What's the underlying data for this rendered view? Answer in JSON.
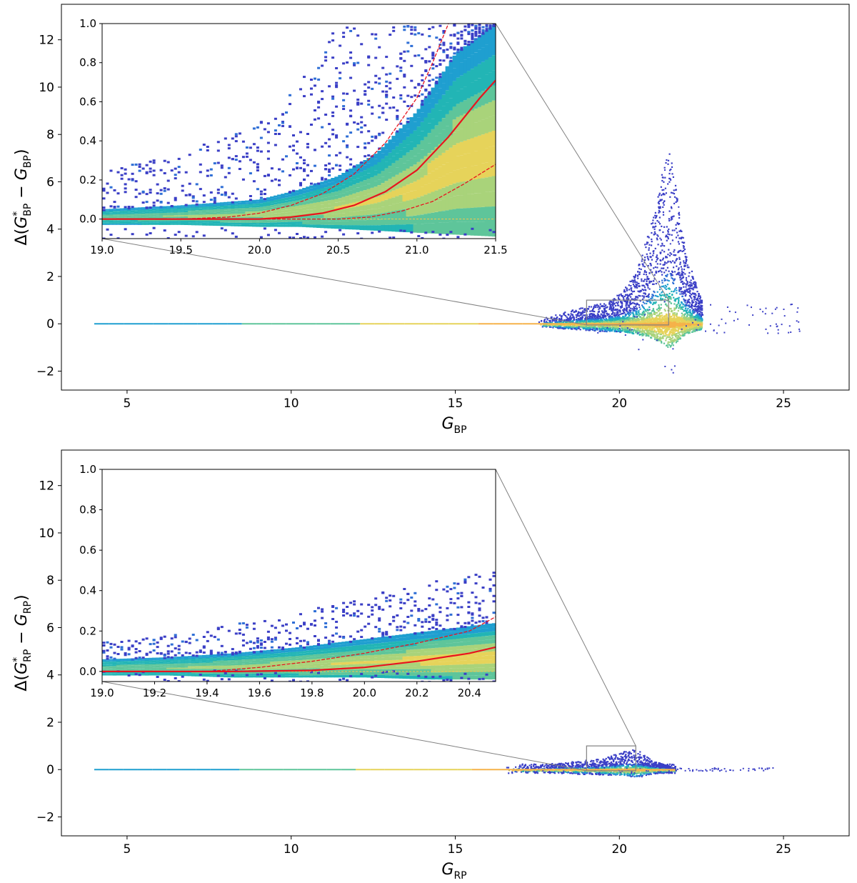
{
  "figure": {
    "panels": [
      "top",
      "bottom"
    ]
  },
  "colors": {
    "colormap": [
      "#3b3fc6",
      "#2f6fd6",
      "#1f9fd0",
      "#22b5b5",
      "#5ec59a",
      "#a9d37a",
      "#e6d35a",
      "#f5b24a"
    ],
    "fit_line": "#e8141e",
    "zoom_box": "#808080",
    "zero_line": "#f2c54d"
  },
  "chart_data": [
    {
      "id": "top",
      "type": "scatter",
      "render": "2d-density (hexbin)",
      "title": "",
      "xlabel": {
        "main": "G",
        "sub": "BP"
      },
      "ylabel": {
        "prefix": "Δ(",
        "g1": "G",
        "g1_sup": "*",
        "g1_sub": "BP",
        "minus": " − ",
        "g2": "G",
        "g2_sub": "BP",
        "suffix": ")"
      },
      "xlim": [
        3,
        27
      ],
      "ylim": [
        -2.8,
        13.5
      ],
      "xticks": [
        5,
        10,
        15,
        20,
        25
      ],
      "xtick_labels": [
        "5",
        "10",
        "15",
        "20",
        "25"
      ],
      "yticks": [
        -2,
        0,
        2,
        4,
        6,
        8,
        10,
        12
      ],
      "ytick_labels": [
        "−2",
        "0",
        "2",
        "4",
        "6",
        "8",
        "10",
        "12"
      ],
      "density_envelope": {
        "description": "median and spread of Δ vs magnitude (main panel)",
        "x": [
          17.5,
          18.5,
          19.5,
          20.0,
          20.5,
          21.0,
          21.3,
          21.5,
          21.7,
          22.0,
          22.5
        ],
        "upper": [
          0.2,
          0.6,
          0.9,
          1.3,
          2.2,
          4.5,
          6.5,
          7.5,
          6.0,
          3.0,
          1.0
        ],
        "lower": [
          -0.1,
          -0.2,
          -0.3,
          -0.3,
          -0.4,
          -0.6,
          -0.8,
          -1.0,
          -0.8,
          -0.4,
          -0.2
        ]
      },
      "zero_line_range": [
        4,
        22
      ],
      "zoom_box": {
        "x": [
          19,
          21.5
        ],
        "y": [
          -0.05,
          1.0
        ]
      },
      "inset": {
        "xlim": [
          19.0,
          21.5
        ],
        "ylim": [
          -0.1,
          1.0
        ],
        "xticks": [
          19.0,
          19.5,
          20.0,
          20.5,
          21.0,
          21.5
        ],
        "xtick_labels": [
          "19.0",
          "19.5",
          "20.0",
          "20.5",
          "21.0",
          "21.5"
        ],
        "yticks": [
          0.0,
          0.2,
          0.4,
          0.6,
          0.8,
          1.0
        ],
        "ytick_labels": [
          "0.0",
          "0.2",
          "0.4",
          "0.6",
          "0.8",
          "1.0"
        ],
        "series": [
          {
            "name": "median",
            "style": "solid",
            "x": [
              19.0,
              19.5,
              20.0,
              20.2,
              20.4,
              20.6,
              20.8,
              21.0,
              21.2,
              21.4,
              21.5
            ],
            "y": [
              0.0,
              0.0,
              0.0,
              0.01,
              0.03,
              0.07,
              0.14,
              0.25,
              0.42,
              0.62,
              0.71
            ]
          },
          {
            "name": "upper bound",
            "style": "dashed",
            "x": [
              19.0,
              19.5,
              19.8,
              20.0,
              20.2,
              20.4,
              20.6,
              20.8,
              21.0,
              21.1,
              21.2
            ],
            "y": [
              0.0,
              0.0,
              0.01,
              0.03,
              0.07,
              0.13,
              0.23,
              0.39,
              0.62,
              0.8,
              1.0
            ]
          },
          {
            "name": "lower bound",
            "style": "dashed",
            "x": [
              19.0,
              20.5,
              20.7,
              20.9,
              21.1,
              21.3,
              21.5
            ],
            "y": [
              0.0,
              0.0,
              0.01,
              0.04,
              0.09,
              0.18,
              0.28
            ]
          }
        ],
        "density": {
          "x": [
            19.0,
            19.5,
            20.0,
            20.25,
            20.5,
            20.75,
            21.0,
            21.25,
            21.5
          ],
          "core_upper": [
            0.05,
            0.07,
            0.1,
            0.15,
            0.22,
            0.34,
            0.55,
            0.85,
            1.0
          ],
          "core_lower": [
            -0.03,
            -0.03,
            -0.04,
            -0.04,
            -0.05,
            -0.06,
            -0.07,
            -0.08,
            -0.09
          ],
          "scatter_upper": [
            0.25,
            0.35,
            0.5,
            0.7,
            1.0,
            1.0,
            1.0,
            1.0,
            1.0
          ]
        }
      }
    },
    {
      "id": "bottom",
      "type": "scatter",
      "render": "2d-density (hexbin)",
      "title": "",
      "xlabel": {
        "main": "G",
        "sub": "RP"
      },
      "ylabel": {
        "prefix": "Δ(",
        "g1": "G",
        "g1_sup": "*",
        "g1_sub": "RP",
        "minus": " − ",
        "g2": "G",
        "g2_sub": "RP",
        "suffix": ")"
      },
      "xlim": [
        3,
        27
      ],
      "ylim": [
        -2.8,
        13.5
      ],
      "xticks": [
        5,
        10,
        15,
        20,
        25
      ],
      "xtick_labels": [
        "5",
        "10",
        "15",
        "20",
        "25"
      ],
      "yticks": [
        -2,
        0,
        2,
        4,
        6,
        8,
        10,
        12
      ],
      "ytick_labels": [
        "−2",
        "0",
        "2",
        "4",
        "6",
        "8",
        "10",
        "12"
      ],
      "density_envelope": {
        "description": "median and spread of Δ vs magnitude (main panel)",
        "x": [
          16.5,
          17.5,
          18.5,
          19.5,
          20.0,
          20.5,
          21.0,
          21.7
        ],
        "upper": [
          0.1,
          0.2,
          0.35,
          0.5,
          0.75,
          0.9,
          0.4,
          0.1
        ],
        "lower": [
          -0.05,
          -0.1,
          -0.15,
          -0.2,
          -0.2,
          -0.3,
          -0.15,
          -0.05
        ]
      },
      "zero_line_range": [
        4,
        21.7
      ],
      "zoom_box": {
        "x": [
          19,
          20.5
        ],
        "y": [
          -0.05,
          1.0
        ]
      },
      "inset": {
        "xlim": [
          19.0,
          20.5
        ],
        "ylim": [
          -0.05,
          1.0
        ],
        "xticks": [
          19.0,
          19.2,
          19.4,
          19.6,
          19.8,
          20.0,
          20.2,
          20.4
        ],
        "xtick_labels": [
          "19.0",
          "19.2",
          "19.4",
          "19.6",
          "19.8",
          "20.0",
          "20.2",
          "20.4"
        ],
        "yticks": [
          0.0,
          0.2,
          0.4,
          0.6,
          0.8,
          1.0
        ],
        "ytick_labels": [
          "0.0",
          "0.2",
          "0.4",
          "0.6",
          "0.8",
          "1.0"
        ],
        "series": [
          {
            "name": "median",
            "style": "solid",
            "x": [
              19.0,
              19.5,
              19.8,
              20.0,
              20.2,
              20.4,
              20.5
            ],
            "y": [
              0.0,
              0.0,
              0.005,
              0.02,
              0.05,
              0.09,
              0.12
            ]
          },
          {
            "name": "upper bound",
            "style": "dashed",
            "x": [
              19.0,
              19.4,
              19.6,
              19.8,
              20.0,
              20.2,
              20.4,
              20.5
            ],
            "y": [
              0.0,
              0.0,
              0.02,
              0.05,
              0.09,
              0.14,
              0.2,
              0.27
            ]
          }
        ],
        "density": {
          "x": [
            19.0,
            19.25,
            19.5,
            19.75,
            20.0,
            20.25,
            20.5
          ],
          "core_upper": [
            0.06,
            0.07,
            0.09,
            0.12,
            0.16,
            0.2,
            0.24
          ],
          "core_lower": [
            -0.02,
            -0.02,
            -0.03,
            -0.03,
            -0.03,
            -0.04,
            -0.04
          ],
          "scatter_upper": [
            0.15,
            0.18,
            0.24,
            0.3,
            0.38,
            0.45,
            0.5
          ]
        }
      }
    }
  ]
}
